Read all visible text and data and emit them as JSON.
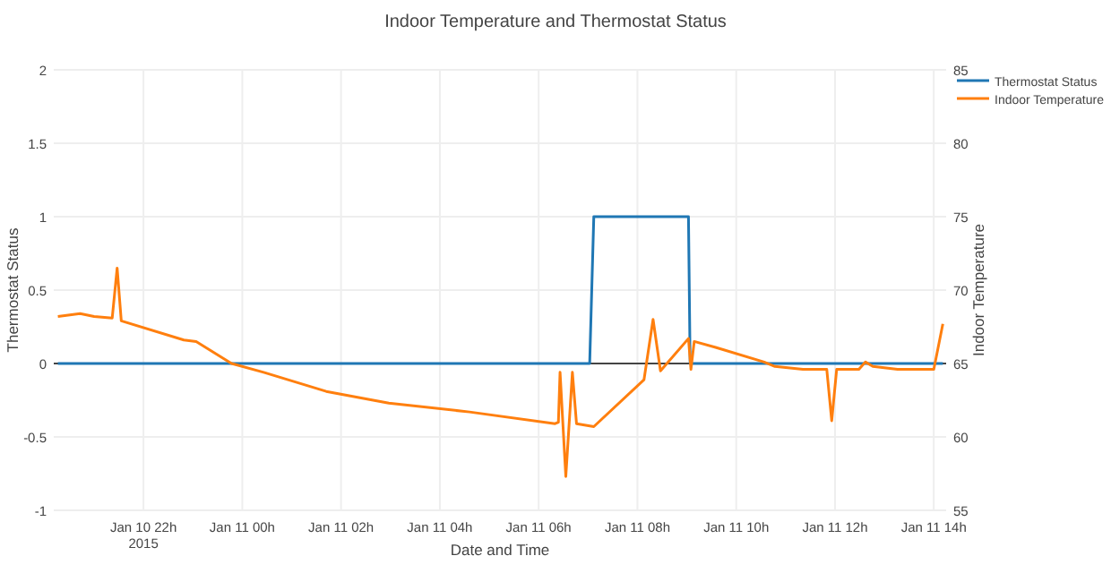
{
  "chart_data": {
    "type": "line",
    "title": "Indoor Temperature and Thermostat Status",
    "xlabel": "Date and Time",
    "ylabel": "Thermostat Status",
    "y2label": "Indoor Temperature",
    "xlim": [
      "2015-01-10T20:11",
      "2015-01-11T14:15"
    ],
    "xticks": [
      {
        "value": "2015-01-10T22:00",
        "label": "Jan 10 22h\n2015"
      },
      {
        "value": "2015-01-11T00:00",
        "label": "Jan 11 00h"
      },
      {
        "value": "2015-01-11T02:00",
        "label": "Jan 11 02h"
      },
      {
        "value": "2015-01-11T04:00",
        "label": "Jan 11 04h"
      },
      {
        "value": "2015-01-11T06:00",
        "label": "Jan 11 06h"
      },
      {
        "value": "2015-01-11T08:00",
        "label": "Jan 11 08h"
      },
      {
        "value": "2015-01-11T10:00",
        "label": "Jan 11 10h"
      },
      {
        "value": "2015-01-11T12:00",
        "label": "Jan 11 12h"
      },
      {
        "value": "2015-01-11T14:00",
        "label": "Jan 11 14h"
      }
    ],
    "ylim": [
      -1,
      2
    ],
    "yticks": [
      -1,
      -0.5,
      0,
      0.5,
      1,
      1.5,
      2
    ],
    "y2lim": [
      55,
      85
    ],
    "y2ticks": [
      55,
      60,
      65,
      70,
      75,
      80,
      85
    ],
    "grid": true,
    "legend": "top right",
    "ref_lines": [
      {
        "axis": "y",
        "value": 0,
        "color": "#444444"
      }
    ],
    "series": [
      {
        "name": "Thermostat Status",
        "color": "#1f77b4",
        "x": [
          "2015-01-10T20:16",
          "2015-01-11T07:02",
          "2015-01-11T07:07",
          "2015-01-11T09:02",
          "2015-01-11T09:04",
          "2015-01-11T14:11"
        ],
        "values": [
          0,
          0,
          1,
          1,
          0,
          0
        ]
      },
      {
        "name": "Indoor Temperature",
        "color": "#ff7f0e",
        "axis": "y2",
        "x": [
          "2015-01-10T20:16",
          "2015-01-10T20:43",
          "2015-01-10T21:00",
          "2015-01-10T21:22",
          "2015-01-10T21:28",
          "2015-01-10T21:33",
          "2015-01-10T22:49",
          "2015-01-10T23:04",
          "2015-01-10T23:47",
          "2015-01-11T00:26",
          "2015-01-11T01:42",
          "2015-01-11T02:58",
          "2015-01-11T04:36",
          "2015-01-11T06:20",
          "2015-01-11T06:24",
          "2015-01-11T06:26",
          "2015-01-11T06:33",
          "2015-01-11T06:41",
          "2015-01-11T06:46",
          "2015-01-11T07:07",
          "2015-01-11T08:08",
          "2015-01-11T08:19",
          "2015-01-11T08:28",
          "2015-01-11T09:02",
          "2015-01-11T09:05",
          "2015-01-11T09:09",
          "2015-01-11T09:35",
          "2015-01-11T10:34",
          "2015-01-11T10:47",
          "2015-01-11T11:21",
          "2015-01-11T11:50",
          "2015-01-11T11:56",
          "2015-01-11T12:02",
          "2015-01-11T12:29",
          "2015-01-11T12:37",
          "2015-01-11T12:46",
          "2015-01-11T13:16",
          "2015-01-11T14:00",
          "2015-01-11T14:11"
        ],
        "values": [
          68.2,
          68.4,
          68.2,
          68.1,
          71.5,
          67.9,
          66.6,
          66.5,
          65,
          64.4,
          63.1,
          62.3,
          61.7,
          60.9,
          61,
          64.4,
          57.3,
          64.4,
          60.9,
          60.7,
          63.9,
          68,
          64.5,
          66.7,
          64.6,
          66.5,
          66.1,
          65.1,
          64.8,
          64.6,
          64.6,
          61.1,
          64.6,
          64.6,
          65.1,
          64.8,
          64.6,
          64.6,
          67.7
        ]
      }
    ]
  }
}
